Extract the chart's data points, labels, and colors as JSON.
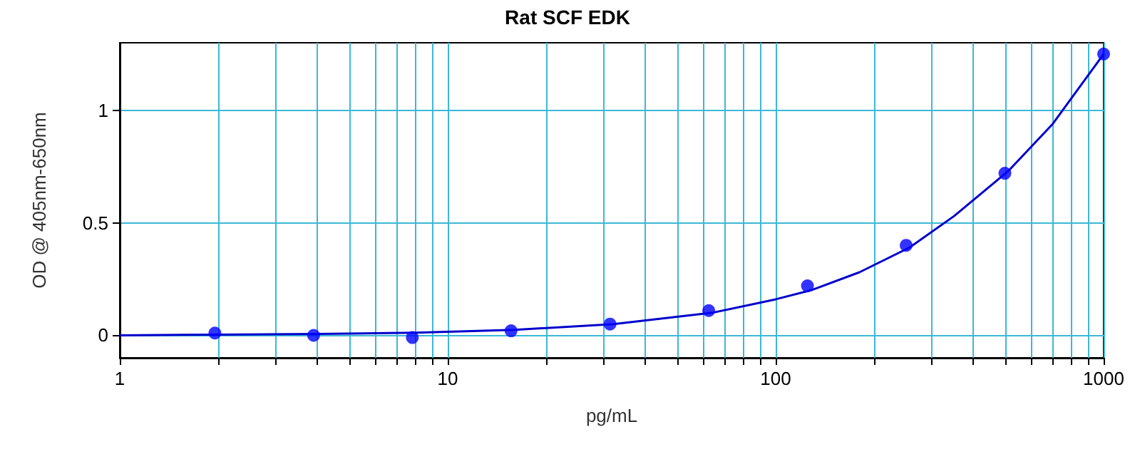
{
  "chart_data": {
    "type": "scatter",
    "title": "Rat SCF EDK",
    "xlabel": "pg/mL",
    "ylabel": "OD @ 405nm-650nm",
    "log": "x",
    "grid": true,
    "xlim": [
      1,
      1000
    ],
    "ylim": [
      -0.1,
      1.3
    ],
    "xticks": [
      1,
      {
        "value": 2,
        "label": null
      },
      {
        "value": 3,
        "label": null
      },
      {
        "value": 4,
        "label": null
      },
      {
        "value": 5,
        "label": null
      },
      {
        "value": 6,
        "label": null
      },
      {
        "value": 7,
        "label": null
      },
      {
        "value": 8,
        "label": null
      },
      {
        "value": 9,
        "label": null
      },
      10,
      {
        "value": 20,
        "label": null
      },
      {
        "value": 30,
        "label": null
      },
      {
        "value": 40,
        "label": null
      },
      {
        "value": 50,
        "label": null
      },
      {
        "value": 60,
        "label": null
      },
      {
        "value": 70,
        "label": null
      },
      {
        "value": 80,
        "label": null
      },
      {
        "value": 90,
        "label": null
      },
      100,
      {
        "value": 200,
        "label": null
      },
      {
        "value": 300,
        "label": null
      },
      {
        "value": 400,
        "label": null
      },
      {
        "value": 500,
        "label": null
      },
      {
        "value": 600,
        "label": null
      },
      {
        "value": 700,
        "label": null
      },
      {
        "value": 800,
        "label": null
      },
      {
        "value": 900,
        "label": null
      },
      1000
    ],
    "yticks": [
      0,
      0.5,
      1
    ],
    "series": [
      {
        "color": "#0000ff",
        "marker": "circle",
        "x": [
          1.95,
          3.9,
          7.8,
          15.6,
          31.25,
          62.5,
          125,
          250,
          500,
          1000
        ],
        "values": [
          0.01,
          0.0,
          -0.01,
          0.02,
          0.05,
          0.11,
          0.22,
          0.4,
          0.72,
          1.25
        ]
      },
      {
        "type": "line",
        "color": "#0000cc",
        "marker": "none",
        "line_style": "solid",
        "x": [
          1,
          2,
          4,
          8,
          16,
          32,
          64,
          100,
          128,
          180,
          256,
          350,
          512,
          700,
          1000
        ],
        "values": [
          0.0,
          0.003,
          0.006,
          0.012,
          0.024,
          0.05,
          0.1,
          0.16,
          0.2,
          0.28,
          0.39,
          0.53,
          0.73,
          0.94,
          1.25
        ]
      }
    ]
  }
}
